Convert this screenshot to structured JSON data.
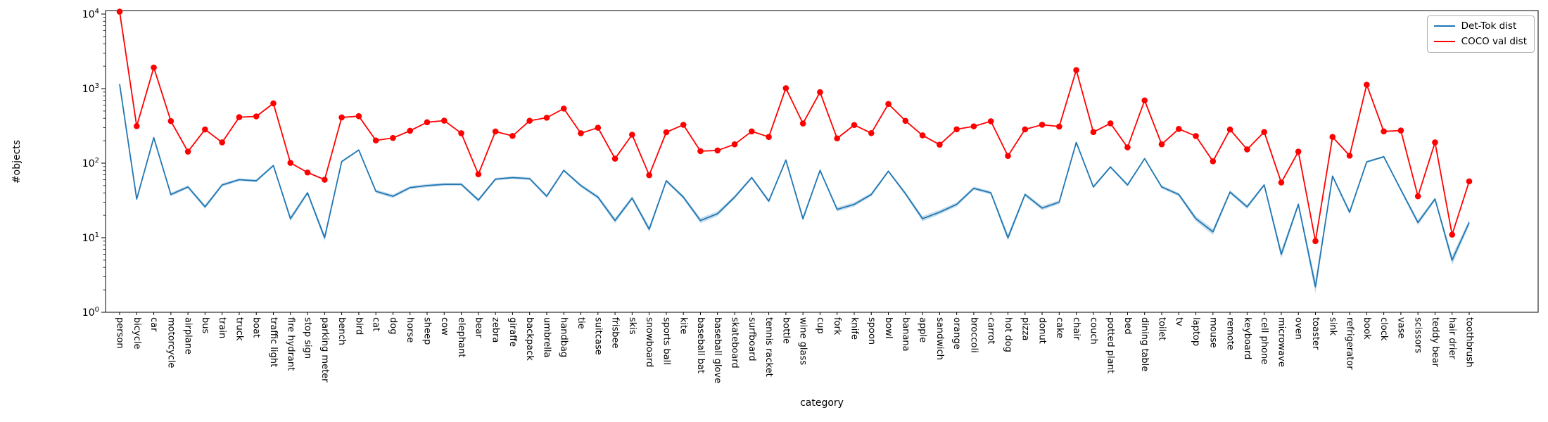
{
  "figure": {
    "background": "#ffffff",
    "axes_edge_color": "#000000"
  },
  "legend": {
    "position": "upper right",
    "items": [
      {
        "label": "Det-Tok dist",
        "color": "#1f77b4"
      },
      {
        "label": "COCO val dist",
        "color": "#ff0000"
      }
    ]
  },
  "chart_data": {
    "type": "line",
    "title": "",
    "xlabel": "category",
    "ylabel": "#objects",
    "y_scale": "log",
    "ylim": [
      1,
      10000
    ],
    "y_tick_exponents": [
      0,
      1,
      2,
      3,
      4
    ],
    "grid": false,
    "legend_position": "upper right",
    "categories": [
      "person",
      "bicycle",
      "car",
      "motorcycle",
      "airplane",
      "bus",
      "train",
      "truck",
      "boat",
      "traffic light",
      "fire hydrant",
      "stop sign",
      "parking meter",
      "bench",
      "bird",
      "cat",
      "dog",
      "horse",
      "sheep",
      "cow",
      "elephant",
      "bear",
      "zebra",
      "giraffe",
      "backpack",
      "umbrella",
      "handbag",
      "tie",
      "suitcase",
      "frisbee",
      "skis",
      "snowboard",
      "sports ball",
      "kite",
      "baseball bat",
      "baseball glove",
      "skateboard",
      "surfboard",
      "tennis racket",
      "bottle",
      "wine glass",
      "cup",
      "fork",
      "knife",
      "spoon",
      "bowl",
      "banana",
      "apple",
      "sandwich",
      "orange",
      "broccoli",
      "carrot",
      "hot dog",
      "pizza",
      "donut",
      "cake",
      "chair",
      "couch",
      "potted plant",
      "bed",
      "dining table",
      "toilet",
      "tv",
      "laptop",
      "mouse",
      "remote",
      "keyboard",
      "cell phone",
      "microwave",
      "oven",
      "toaster",
      "sink",
      "refrigerator",
      "book",
      "clock",
      "vase",
      "scissors",
      "teddy bear",
      "hair drier",
      "toothbrush"
    ],
    "series": [
      {
        "name": "Det-Tok dist",
        "color": "#1f77b4",
        "line_width": 1.8,
        "marker": "none",
        "band": {
          "enabled": true,
          "relative_coef": 0.35,
          "fill_color": "rgba(31,119,180,0.25)"
        },
        "values": [
          1150,
          33,
          220,
          38,
          48,
          26,
          51,
          60,
          58,
          93,
          18,
          40,
          10,
          105,
          150,
          42,
          36,
          47,
          50,
          52,
          52,
          32,
          61,
          64,
          62,
          36,
          80,
          50,
          35,
          17,
          34,
          13,
          58,
          35,
          17,
          21,
          35,
          64,
          31,
          110,
          18,
          80,
          24,
          28,
          38,
          78,
          39,
          18,
          22,
          28,
          46,
          40,
          10,
          38,
          25,
          30,
          190,
          48,
          89,
          51,
          115,
          48,
          38,
          18,
          12,
          41,
          26,
          51,
          6,
          28,
          2.2,
          67,
          22,
          104,
          122,
          44,
          16,
          33,
          5,
          16
        ]
      },
      {
        "name": "COCO val dist",
        "color": "#ff0000",
        "line_width": 1.8,
        "marker": "circle",
        "marker_size": 4.3,
        "band": {
          "enabled": false
        },
        "values": [
          10777,
          314,
          1918,
          367,
          143,
          283,
          190,
          414,
          424,
          634,
          101,
          75,
          60,
          411,
          427,
          202,
          218,
          272,
          354,
          372,
          252,
          71,
          266,
          232,
          371,
          407,
          540,
          252,
          299,
          115,
          241,
          69,
          260,
          327,
          145,
          148,
          179,
          267,
          225,
          1013,
          341,
          895,
          215,
          325,
          253,
          623,
          370,
          236,
          177,
          285,
          312,
          365,
          125,
          284,
          328,
          310,
          1771,
          261,
          342,
          163,
          695,
          179,
          288,
          231,
          106,
          283,
          153,
          262,
          55,
          143,
          9,
          225,
          126,
          1129,
          267,
          274,
          36,
          190,
          11,
          57
        ]
      }
    ]
  }
}
